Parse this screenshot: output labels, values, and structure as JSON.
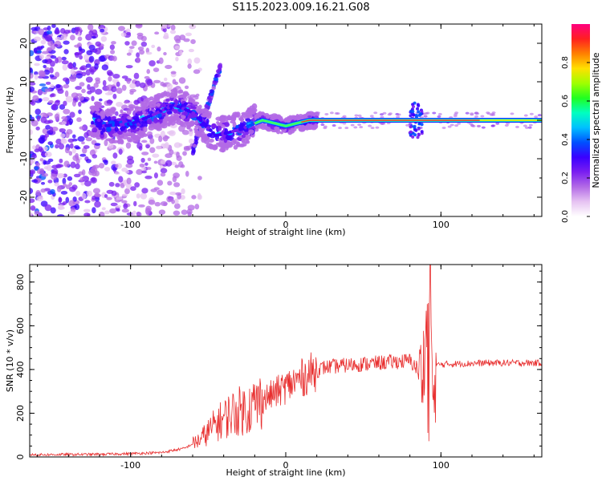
{
  "title": "S115.2023.009.16.21.G08",
  "chart_data": [
    {
      "type": "heatmap",
      "xlabel": "Height of straight line (km)",
      "ylabel": "Frequency (Hz)",
      "xlim": [
        -165,
        165
      ],
      "ylim": [
        -25,
        25
      ],
      "x_ticks": [
        -100,
        0,
        100
      ],
      "y_ticks": [
        -20,
        -10,
        0,
        10,
        20
      ],
      "grid": false,
      "colorbar": {
        "label": "Normalized spectral amplitude",
        "range": [
          0,
          1
        ],
        "ticks": [
          0.0,
          0.2,
          0.4,
          0.6,
          0.8
        ],
        "colors": [
          "#ffffff",
          "#e6c3f2",
          "#b36ae6",
          "#7a1ef0",
          "#3a00ff",
          "#0050ff",
          "#00c0ff",
          "#00ffc0",
          "#20ff20",
          "#a0ff00",
          "#ffe000",
          "#ff8000",
          "#ff2020",
          "#ff0080"
        ]
      },
      "ridge": [
        {
          "x": -120,
          "y": -1.5
        },
        {
          "x": -100,
          "y": -1
        },
        {
          "x": -85,
          "y": 1.5
        },
        {
          "x": -72,
          "y": 4
        },
        {
          "x": -60,
          "y": 2
        },
        {
          "x": -45,
          "y": -4
        },
        {
          "x": -30,
          "y": -2.5
        },
        {
          "x": -15,
          "y": 0
        },
        {
          "x": 0,
          "y": -1.5
        },
        {
          "x": 15,
          "y": 0
        },
        {
          "x": 50,
          "y": 0
        },
        {
          "x": 85,
          "y": 0
        },
        {
          "x": 120,
          "y": 0
        },
        {
          "x": 165,
          "y": 0
        }
      ]
    },
    {
      "type": "line",
      "xlabel": "Height of straight line (km)",
      "ylabel": "SNR (10 * v/v)",
      "xlim": [
        -165,
        165
      ],
      "ylim": [
        0,
        880
      ],
      "x_ticks": [
        -100,
        0,
        100
      ],
      "y_ticks": [
        0,
        200,
        400,
        600,
        800
      ],
      "grid": false,
      "color": "#e83030",
      "x": [
        -165,
        -120,
        -100,
        -80,
        -65,
        -55,
        -45,
        -35,
        -25,
        -15,
        -5,
        5,
        15,
        25,
        40,
        60,
        80,
        88,
        91,
        93,
        95,
        97,
        105,
        130,
        165
      ],
      "y": [
        10,
        12,
        15,
        20,
        40,
        80,
        150,
        200,
        220,
        260,
        300,
        340,
        380,
        410,
        420,
        430,
        440,
        380,
        600,
        880,
        100,
        420,
        425,
        430,
        430
      ]
    }
  ]
}
